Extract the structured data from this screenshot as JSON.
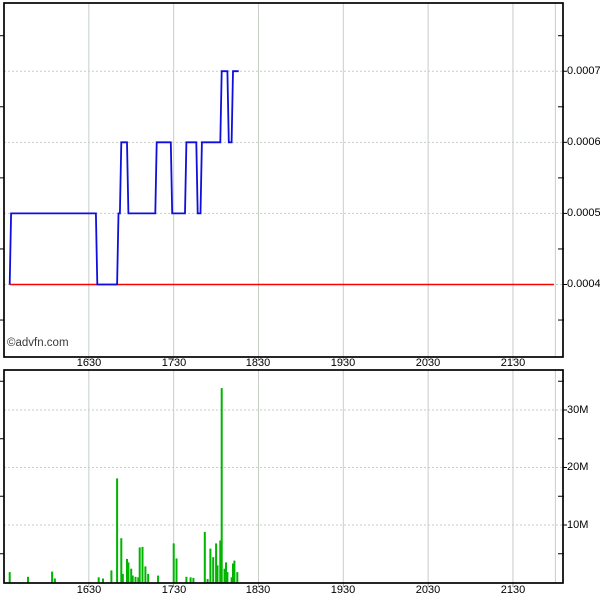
{
  "watermark": "©advfn.com",
  "chart_data": [
    {
      "id": "price-intraday",
      "type": "line",
      "title": "",
      "xlabel": "",
      "ylabel": "",
      "grid": true,
      "legend": "none",
      "y_axis": {
        "min": 0.000298,
        "max": 0.000796,
        "gridlines": [
          0.0004,
          0.0005,
          0.0006,
          0.0007
        ],
        "minor_ticks": [
          0.00035,
          0.00045,
          0.00055,
          0.00065,
          0.00075
        ],
        "labels": [
          {
            "text": "0.0007",
            "value": 0.0007
          },
          {
            "text": "0.0006",
            "value": 0.0006
          },
          {
            "text": "0.0005",
            "value": 0.0005
          },
          {
            "text": "0.0004",
            "value": 0.0004
          }
        ]
      },
      "x_axis": {
        "min_minutes": 930,
        "max_minutes": 1325.4,
        "gridline_minutes": [
          990,
          1050,
          1110,
          1170,
          1230,
          1290,
          1320
        ],
        "labels": [
          {
            "text": "1630",
            "minutes": 990
          },
          {
            "text": "1730",
            "minutes": 1050
          },
          {
            "text": "1830",
            "minutes": 1110
          },
          {
            "text": "1930",
            "minutes": 1170
          },
          {
            "text": "2030",
            "minutes": 1230
          },
          {
            "text": "2130",
            "minutes": 1290
          }
        ]
      },
      "series": [
        {
          "name": "price",
          "color": "#0f0fdc",
          "points": [
            [
              934,
              0.0004
            ],
            [
              935,
              0.0005
            ],
            [
              995,
              0.0005
            ],
            [
              996,
              0.0004
            ],
            [
              1010,
              0.0004
            ],
            [
              1011,
              0.0005
            ],
            [
              1012,
              0.0005
            ],
            [
              1013,
              0.0006
            ],
            [
              1017,
              0.0006
            ],
            [
              1018,
              0.0005
            ],
            [
              1037,
              0.0005
            ],
            [
              1038,
              0.0006
            ],
            [
              1048,
              0.0006
            ],
            [
              1049,
              0.0005
            ],
            [
              1058,
              0.0005
            ],
            [
              1059,
              0.0006
            ],
            [
              1066,
              0.0006
            ],
            [
              1067,
              0.0005
            ],
            [
              1069,
              0.0005
            ],
            [
              1070,
              0.0006
            ],
            [
              1083,
              0.0006
            ],
            [
              1084,
              0.0007
            ],
            [
              1088,
              0.0007
            ],
            [
              1089,
              0.0006
            ],
            [
              1091,
              0.0006
            ],
            [
              1092,
              0.0007
            ],
            [
              1096,
              0.0007
            ]
          ]
        }
      ],
      "reference_line": {
        "name": "previous-close-line",
        "color": "#ff0000",
        "value": 0.0004,
        "from_minutes": 934,
        "to_minutes": 1319
      },
      "gridline_color": "#c6cec6"
    },
    {
      "id": "volume",
      "type": "bar",
      "title": "",
      "xlabel": "",
      "ylabel": "",
      "grid": true,
      "bar_color": "#00b400",
      "gridline_color": "#c6cec6",
      "y_axis": {
        "min": 0,
        "max": 37,
        "unit": "M",
        "gridlines": [
          10,
          20,
          30
        ],
        "minor_ticks": [
          5,
          15,
          25,
          35
        ],
        "labels": [
          {
            "text": "30M",
            "value": 30
          },
          {
            "text": "20M",
            "value": 20
          },
          {
            "text": "10M",
            "value": 10
          }
        ]
      },
      "x_axis": {
        "min_minutes": 930,
        "max_minutes": 1325.4,
        "gridline_minutes": [
          990,
          1050,
          1110,
          1170,
          1230,
          1290,
          1320
        ],
        "labels": [
          {
            "text": "1630",
            "minutes": 990
          },
          {
            "text": "1730",
            "minutes": 1050
          },
          {
            "text": "1830",
            "minutes": 1110
          },
          {
            "text": "1930",
            "minutes": 1170
          },
          {
            "text": "2030",
            "minutes": 1230
          },
          {
            "text": "2130",
            "minutes": 1290
          }
        ]
      },
      "bars": [
        [
          934,
          1.8
        ],
        [
          947,
          1.0
        ],
        [
          964,
          1.9
        ],
        [
          966,
          0.7
        ],
        [
          997,
          0.9
        ],
        [
          1000,
          0.7
        ],
        [
          1006,
          2.1
        ],
        [
          1010,
          18.1
        ],
        [
          1013,
          7.7
        ],
        [
          1014,
          1.5
        ],
        [
          1017,
          4.1
        ],
        [
          1018,
          3.5
        ],
        [
          1020,
          2.4
        ],
        [
          1021,
          1.2
        ],
        [
          1023,
          1.0
        ],
        [
          1025,
          0.9
        ],
        [
          1026,
          6.1
        ],
        [
          1028,
          6.2
        ],
        [
          1030,
          2.8
        ],
        [
          1032,
          1.5
        ],
        [
          1039,
          1.2
        ],
        [
          1050,
          6.8
        ],
        [
          1052,
          4.2
        ],
        [
          1059,
          1.0
        ],
        [
          1062,
          0.9
        ],
        [
          1064,
          0.8
        ],
        [
          1072,
          8.8
        ],
        [
          1074,
          0.6
        ],
        [
          1076,
          5.9
        ],
        [
          1078,
          4.4
        ],
        [
          1080,
          6.8
        ],
        [
          1081,
          3.0
        ],
        [
          1083,
          7.3
        ],
        [
          1084,
          33.8
        ],
        [
          1086,
          2.4
        ],
        [
          1087,
          3.5
        ],
        [
          1088,
          1.8
        ],
        [
          1091,
          0.9
        ],
        [
          1092,
          3.3
        ],
        [
          1093,
          3.8
        ],
        [
          1095,
          1.8
        ]
      ]
    }
  ]
}
